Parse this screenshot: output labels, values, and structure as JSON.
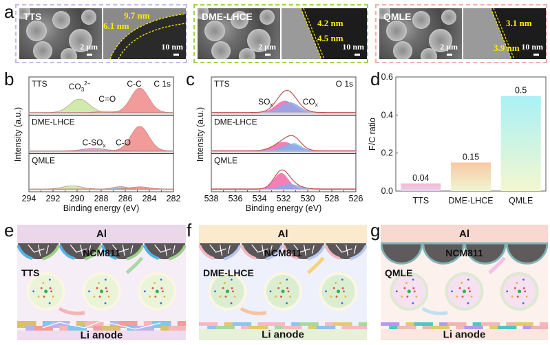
{
  "panel_labels": {
    "a": "a",
    "b": "b",
    "c": "c",
    "d": "d",
    "e": "e",
    "f": "f",
    "g": "g"
  },
  "colors": {
    "tts_frame": "#c9b8ee",
    "dme_frame": "#9bd44a",
    "qmle_frame": "#f2b0a8",
    "annotation_yellow": "#ffea00",
    "c1s_co3": "#c8e6a0",
    "c1s_cc": "#f08a8a",
    "c1s_csox": "#c79be8",
    "c1s_co": "#8fbfef",
    "o1s_sox": "#f06aa8",
    "o1s_cox": "#8fa8e8",
    "o1s_envelope": "#c0504d"
  },
  "panel_a": {
    "samples": [
      {
        "name": "TTS",
        "sem_scale": "2 μm",
        "tem_scale": "10 nm",
        "thickness": [
          "9.7 nm",
          "6.1 nm"
        ]
      },
      {
        "name": "DME-LHCE",
        "sem_scale": "2 μm",
        "tem_scale": "10 nm",
        "thickness": [
          "4.2 nm",
          "4.5 nm"
        ]
      },
      {
        "name": "QMLE",
        "sem_scale": "2 μm",
        "tem_scale": "10 nm",
        "thickness": [
          "3.1 nm",
          "3.9 nm"
        ]
      }
    ]
  },
  "chart_data": [
    {
      "type": "area",
      "panel": "b",
      "title": "C 1s",
      "xlabel": "Binding energy (eV)",
      "ylabel": "Intensity (a.u.)",
      "xlim": [
        294,
        282
      ],
      "xticks": [
        "294",
        "292",
        "290",
        "288",
        "286",
        "284",
        "282"
      ],
      "x_reversed": true,
      "stacks": [
        {
          "name": "TTS",
          "peaks": [
            {
              "label": "CO3 2−",
              "label_main": "CO",
              "label_sub": "3",
              "label_sup": "2−",
              "center": 289.8,
              "height": 0.55,
              "width": 0.8,
              "color": "#c8e6a0"
            },
            {
              "label": "C=O",
              "center": 287.5,
              "height": 0.05,
              "width": 0.8,
              "color": "#f5d28a"
            },
            {
              "label": "C-C",
              "center": 284.8,
              "height": 1.0,
              "width": 0.75,
              "color": "#f08a8a"
            }
          ]
        },
        {
          "name": "DME-LHCE",
          "peaks": [
            {
              "label": "C-SOx",
              "label_main": "C-SO",
              "label_sub": "x",
              "center": 288.6,
              "height": 0.1,
              "width": 0.9,
              "color": "#c79be8"
            },
            {
              "label": "C-O",
              "center": 286.4,
              "height": 0.04,
              "width": 0.5,
              "color": "#8fbfef"
            },
            {
              "label": "",
              "center": 284.8,
              "height": 1.0,
              "width": 0.75,
              "color": "#f08a8a"
            }
          ]
        },
        {
          "name": "QMLE",
          "peaks": [
            {
              "label": "",
              "center": 290.4,
              "height": 0.13,
              "width": 0.8,
              "color": "#c8e6a0"
            },
            {
              "label": "",
              "center": 286.4,
              "height": 0.1,
              "width": 0.6,
              "color": "#8fbfef"
            },
            {
              "label": "",
              "center": 284.8,
              "height": 0.09,
              "width": 0.8,
              "color": "#f08a8a"
            }
          ]
        }
      ]
    },
    {
      "type": "area",
      "panel": "c",
      "title": "O 1s",
      "xlabel": "Binding energy (eV)",
      "ylabel": "Intensity (a.u.)",
      "xlim": [
        538,
        526
      ],
      "xticks": [
        "538",
        "536",
        "534",
        "532",
        "530",
        "528",
        "526"
      ],
      "x_reversed": true,
      "stacks": [
        {
          "name": "TTS",
          "envelope_height": 0.9,
          "peaks": [
            {
              "label": "SOx",
              "label_main": "SO",
              "label_sub": "x",
              "center": 531.9,
              "height": 0.48,
              "width": 0.75,
              "color": "#f06aa8"
            },
            {
              "label": "COx",
              "label_main": "CO",
              "label_sub": "x",
              "center": 531.5,
              "height": 0.42,
              "width": 0.8,
              "color": "#8fa8e8"
            }
          ]
        },
        {
          "name": "DME-LHCE",
          "envelope_height": 0.62,
          "peaks": [
            {
              "label": "",
              "center": 532.0,
              "height": 0.36,
              "width": 0.85,
              "color": "#f06aa8"
            },
            {
              "label": "",
              "center": 531.1,
              "height": 0.32,
              "width": 0.55,
              "color": "#8fd6f0"
            },
            {
              "label": "",
              "center": 531.4,
              "height": 0.28,
              "width": 0.8,
              "color": "#8fa8e8"
            }
          ]
        },
        {
          "name": "QMLE",
          "envelope_height": 0.78,
          "peaks": [
            {
              "label": "",
              "center": 532.2,
              "height": 0.65,
              "width": 0.6,
              "color": "#f06aa8"
            },
            {
              "label": "",
              "center": 531.5,
              "height": 0.2,
              "width": 0.8,
              "color": "#8fa8e8"
            }
          ]
        }
      ]
    },
    {
      "type": "bar",
      "panel": "d",
      "categories": [
        "TTS",
        "DME-LHCE",
        "QMLE"
      ],
      "values": [
        0.04,
        0.15,
        0.5
      ],
      "value_labels": [
        "0.04",
        "0.15",
        "0.5"
      ],
      "xlabel": "",
      "ylabel": "F/C ratio",
      "ylim": [
        0,
        0.6
      ],
      "yticks": [
        "0.0",
        "0.2",
        "0.4",
        "0.6"
      ],
      "bar_colors": [
        [
          "#f7b8c8",
          "#e6d2f5"
        ],
        [
          "#f9c9a6",
          "#eef6cf"
        ],
        [
          "#a9f1f7",
          "#f3f7cf"
        ]
      ]
    }
  ],
  "schematics": [
    {
      "panel": "e",
      "electrolyte": "TTS",
      "top_layer": "Al",
      "cathode": "NCM811",
      "anode": "Li anode",
      "top_color": "#ead7ea",
      "anode_color": "#efdcee",
      "bg_color": "#f6eef6"
    },
    {
      "panel": "f",
      "electrolyte": "DME-LHCE",
      "top_layer": "Al",
      "cathode": "NCM811",
      "anode": "Li anode",
      "top_color": "#fbeacb",
      "anode_color": "#e6f1d8",
      "bg_color": "#eef1fb"
    },
    {
      "panel": "g",
      "electrolyte": "QMLE",
      "top_layer": "Al",
      "cathode": "NCM811",
      "anode": "Li anode",
      "top_color": "#f8d8d0",
      "anode_color": "#fbe6e0",
      "bg_color": "#fdf1ee"
    }
  ]
}
